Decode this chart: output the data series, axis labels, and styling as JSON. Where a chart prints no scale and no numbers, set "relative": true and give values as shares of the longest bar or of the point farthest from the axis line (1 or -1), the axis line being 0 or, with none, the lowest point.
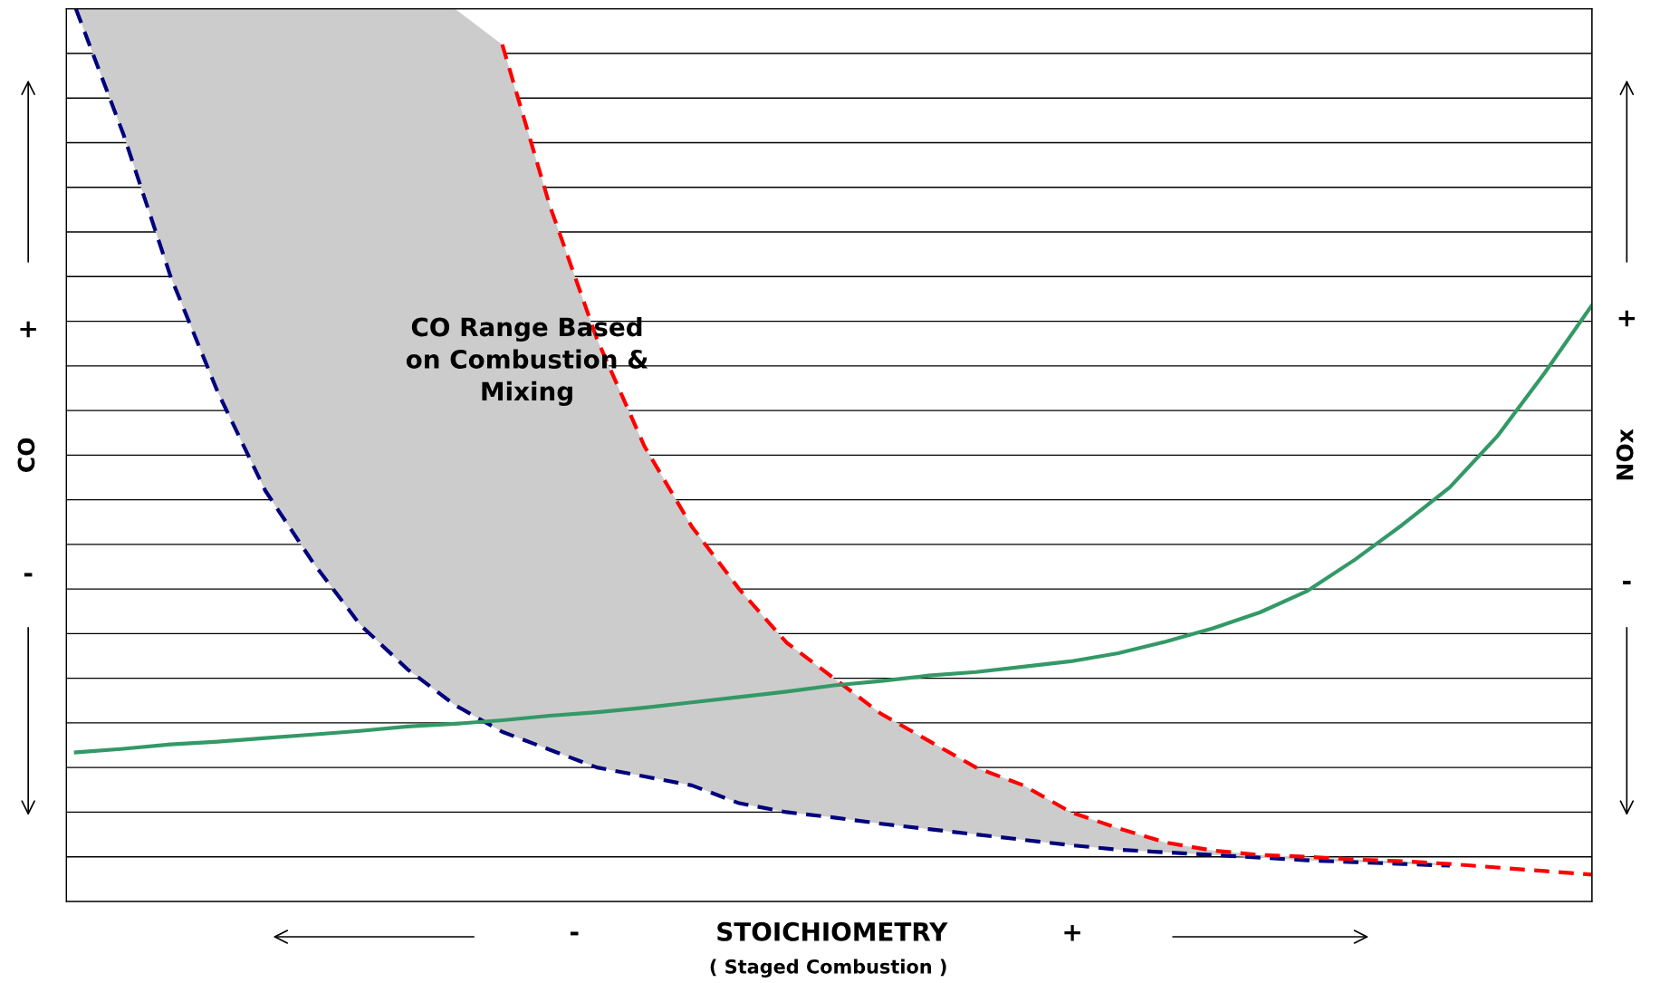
{
  "chart_data": {
    "type": "line",
    "relative": true,
    "ylabel": "CO",
    "y2label": "NOx",
    "xlabel": "STOICHIOMETRY",
    "grid": "y",
    "marker": "none",
    "categories": [
      null,
      null,
      null,
      null,
      null,
      null,
      null,
      null,
      null,
      null,
      null,
      null,
      null,
      null,
      null,
      null,
      null,
      null,
      null,
      null,
      null,
      null,
      null,
      null,
      null,
      null,
      null,
      null,
      null,
      null,
      null,
      null,
      null
    ],
    "series": [
      {
        "color": "#00007f",
        "line_style": "dashed",
        "values": [
          1,
          0.86,
          0.7,
          0.57,
          0.46,
          0.38,
          0.31,
          0.26,
          0.22,
          0.19,
          0.17,
          0.15,
          0.14,
          0.13,
          0.11,
          0.1,
          0.094,
          0.087,
          0.081,
          0.075,
          0.069,
          0.063,
          0.058,
          0.055,
          0.052,
          0.049,
          0.046,
          0.044,
          0.042,
          0.04,
          null,
          null,
          null
        ],
        "lower": [
          1,
          0.86,
          0.7,
          0.57,
          0.46,
          0.38,
          0.31,
          0.26,
          0.22,
          0.19,
          0.17,
          0.15,
          0.14,
          0.13,
          0.11,
          0.1,
          0.094,
          0.087,
          0.081,
          0.075,
          0.069,
          0.063,
          0.058,
          0.055,
          0.052,
          0.049,
          0.046,
          0.044,
          0.042,
          0.04,
          null,
          null,
          null
        ],
        "upper": [
          1,
          1,
          1,
          1,
          1,
          1,
          1,
          1,
          1,
          0.96,
          0.78,
          0.63,
          0.51,
          0.42,
          0.35,
          0.29,
          0.25,
          0.21,
          0.18,
          0.15,
          0.13,
          0.1,
          0.082,
          0.066,
          0.057,
          0.052,
          0.05,
          0.047,
          0.045,
          0.042,
          null,
          null,
          null
        ]
      },
      {
        "color": "#ff0000",
        "line_style": "dashed",
        "values": [
          null,
          null,
          null,
          null,
          null,
          null,
          null,
          null,
          null,
          0.96,
          0.78,
          0.63,
          0.51,
          0.42,
          0.35,
          0.29,
          0.25,
          0.21,
          0.18,
          0.15,
          0.13,
          0.1,
          0.082,
          0.066,
          0.057,
          0.052,
          0.05,
          0.047,
          0.045,
          0.042,
          0.038,
          0.034,
          0.03
        ]
      },
      {
        "color": "#339966",
        "line_style": "solid",
        "values": [
          0.167,
          0.171,
          0.176,
          0.179,
          0.183,
          0.187,
          0.191,
          0.196,
          0.199,
          0.203,
          0.208,
          0.212,
          0.217,
          0.223,
          0.229,
          0.235,
          0.242,
          0.247,
          0.253,
          0.257,
          0.263,
          0.269,
          0.278,
          0.291,
          0.306,
          0.324,
          0.348,
          0.383,
          0.422,
          0.464,
          0.521,
          0.592,
          0.668
        ]
      }
    ],
    "annotations": [
      "CO Range Based\non Combustion &\nMixing",
      "+",
      "-",
      "+",
      "-",
      "-",
      "+",
      "( Staged Combustion )"
    ]
  }
}
